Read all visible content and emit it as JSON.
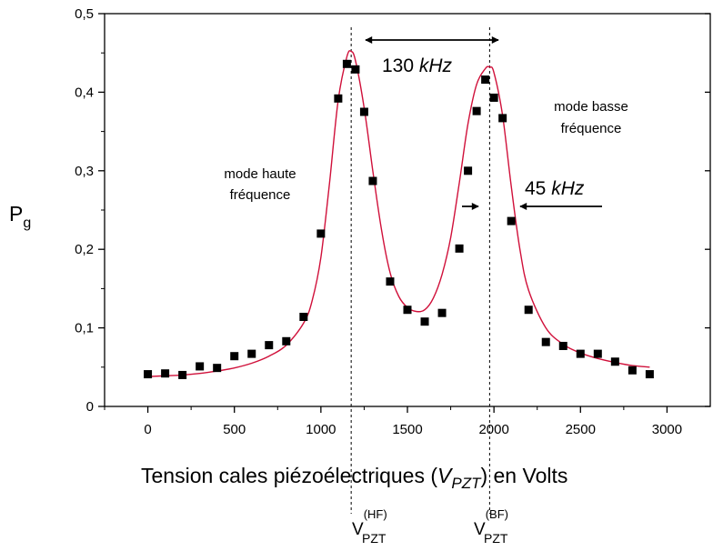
{
  "chart_data": {
    "type": "scatter",
    "xlabel": {
      "main": "Tension cales piézoélectriques (",
      "var": "V",
      "sub": "PZT",
      "tail": ") en Volts"
    },
    "ylabel": {
      "main": "P",
      "sub": "g"
    },
    "xlim": [
      -250,
      3250
    ],
    "ylim": [
      0,
      0.5
    ],
    "x_ticks": [
      0,
      500,
      1000,
      1500,
      2000,
      2500,
      3000
    ],
    "y_ticks": [
      0,
      0.1,
      0.2,
      0.3,
      0.4,
      0.5
    ],
    "y_tick_labels": [
      "0",
      "0,1",
      "0,2",
      "0,3",
      "0,4",
      "0,5"
    ],
    "marker_color": "#000000",
    "fit_color": "#d0103a",
    "series": [
      {
        "kind": "points",
        "x": [
          0,
          100,
          200,
          300,
          400,
          500,
          600,
          700,
          800,
          900,
          1000,
          1100,
          1150,
          1200,
          1250,
          1300,
          1400,
          1500,
          1600,
          1700,
          1800,
          1850,
          1900,
          1950,
          2000,
          2050,
          2100,
          2200,
          2300,
          2400,
          2500,
          2600,
          2700,
          2800,
          2900
        ],
        "y": [
          0.041,
          0.042,
          0.04,
          0.051,
          0.049,
          0.064,
          0.067,
          0.078,
          0.083,
          0.114,
          0.22,
          0.392,
          0.436,
          0.429,
          0.375,
          0.287,
          0.159,
          0.123,
          0.108,
          0.119,
          0.201,
          0.3,
          0.376,
          0.416,
          0.393,
          0.367,
          0.236,
          0.123,
          0.082,
          0.077,
          0.067,
          0.067,
          0.057,
          0.046,
          0.041
        ]
      },
      {
        "kind": "fit",
        "x": [
          0,
          100,
          200,
          300,
          400,
          500,
          600,
          700,
          800,
          900,
          950,
          1000,
          1050,
          1100,
          1150,
          1175,
          1200,
          1250,
          1300,
          1350,
          1400,
          1450,
          1500,
          1550,
          1600,
          1650,
          1700,
          1750,
          1800,
          1850,
          1900,
          1950,
          1975,
          2000,
          2050,
          2100,
          2150,
          2200,
          2300,
          2400,
          2500,
          2600,
          2700,
          2800,
          2900
        ],
        "y": [
          0.038,
          0.039,
          0.04,
          0.042,
          0.045,
          0.049,
          0.055,
          0.064,
          0.078,
          0.106,
          0.135,
          0.19,
          0.285,
          0.39,
          0.445,
          0.452,
          0.44,
          0.38,
          0.3,
          0.225,
          0.17,
          0.14,
          0.126,
          0.121,
          0.123,
          0.138,
          0.168,
          0.215,
          0.285,
          0.36,
          0.41,
          0.43,
          0.432,
          0.425,
          0.37,
          0.28,
          0.2,
          0.148,
          0.1,
          0.079,
          0.068,
          0.061,
          0.056,
          0.052,
          0.05
        ]
      }
    ],
    "vlines": [
      1175,
      1975
    ],
    "annotations": {
      "width_130": {
        "num": "130",
        "unit": "kHz"
      },
      "width_45": {
        "num": "45",
        "unit": "kHz"
      },
      "mode_hf": [
        "mode haute",
        "fréquence"
      ],
      "mode_bf": [
        "mode basse",
        "fréquence"
      ],
      "v_hf": {
        "base": "V",
        "sup": "(HF)",
        "sub": "PZT"
      },
      "v_bf": {
        "base": "V",
        "sup": "(BF)",
        "sub": "PZT"
      }
    }
  }
}
